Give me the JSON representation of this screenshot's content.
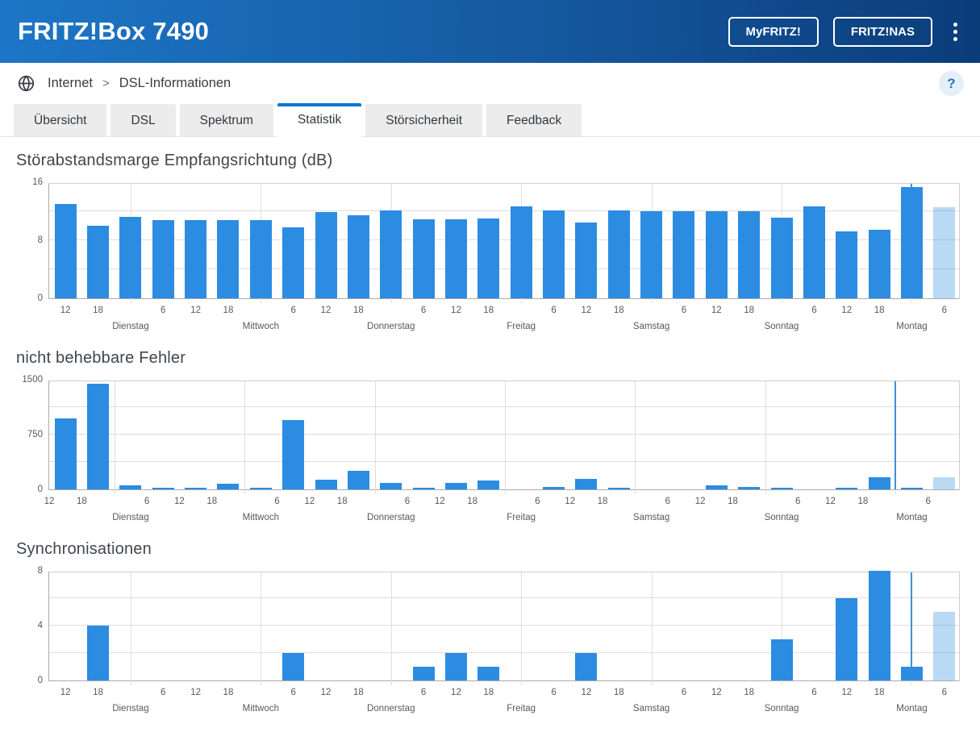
{
  "header": {
    "title": "FRITZ!Box 7490",
    "buttons": [
      {
        "label": "MyFRITZ!"
      },
      {
        "label": "FRITZ!NAS"
      }
    ]
  },
  "breadcrumb": {
    "icon": "globe-icon",
    "items": [
      "Internet",
      "DSL-Informationen"
    ],
    "separator": ">"
  },
  "help": {
    "label": "?"
  },
  "tabs": [
    {
      "label": "Übersicht",
      "active": false
    },
    {
      "label": "DSL",
      "active": false
    },
    {
      "label": "Spektrum",
      "active": false
    },
    {
      "label": "Statistik",
      "active": true
    },
    {
      "label": "Störsicherheit",
      "active": false
    },
    {
      "label": "Feedback",
      "active": false
    }
  ],
  "colors": {
    "bar": "#2b8ce2",
    "bar_light": "rgba(43,140,226,0.33)",
    "event_line": "#3f8fd6",
    "tab_accent": "#0077d2",
    "header_gradient": [
      "#1d76c7",
      "#0b3c7a"
    ],
    "help_bg": "#e4eff9"
  },
  "chart_data": [
    {
      "type": "bar",
      "id": "snr-margin",
      "title": "Störabstandsmarge Empfangsrichtung (dB)",
      "ylabel": "dB",
      "ylim": [
        0,
        16
      ],
      "yticks": [
        0,
        8,
        16
      ],
      "ygrid_step": 4,
      "grid": true,
      "align": "tick",
      "hour_labels": [
        "12",
        "18",
        "",
        "6",
        "12",
        "18",
        "",
        "6",
        "12",
        "18",
        "",
        "6",
        "12",
        "18",
        "",
        "6",
        "12",
        "18",
        "",
        "6",
        "12",
        "18",
        "",
        "6",
        "12",
        "18",
        "",
        "6"
      ],
      "day_slots": [
        2,
        6,
        10,
        14,
        18,
        22,
        26
      ],
      "day_labels": [
        "Dienstag",
        "Mittwoch",
        "Donnerstag",
        "Freitag",
        "Samstag",
        "Sonntag",
        "Montag"
      ],
      "values": [
        13.0,
        10.0,
        11.2,
        10.8,
        10.8,
        10.8,
        10.8,
        9.8,
        11.9,
        11.4,
        12.1,
        10.9,
        10.9,
        11.0,
        12.7,
        12.1,
        10.4,
        12.1,
        12.0,
        12.0,
        12.0,
        12.0,
        11.1,
        12.7,
        9.2,
        9.4,
        15.3,
        12.5
      ],
      "partial_last": true,
      "event_line_slot": 26
    },
    {
      "type": "bar",
      "id": "uncorrectable-errors",
      "title": "nicht behebbare Fehler",
      "ylabel": "",
      "ylim": [
        0,
        1500
      ],
      "yticks": [
        0,
        750,
        1500
      ],
      "ygrid_step": 375,
      "grid": true,
      "align": "edge",
      "hour_labels": [
        "12",
        "18",
        "",
        "6",
        "12",
        "18",
        "",
        "6",
        "12",
        "18",
        "",
        "6",
        "12",
        "18",
        "",
        "6",
        "12",
        "18",
        "",
        "6",
        "12",
        "18",
        "",
        "6",
        "12",
        "18",
        "",
        "6"
      ],
      "day_slots": [
        2,
        6,
        10,
        14,
        18,
        22,
        26
      ],
      "day_labels": [
        "Dienstag",
        "Mittwoch",
        "Donnerstag",
        "Freitag",
        "Samstag",
        "Sonntag",
        "Montag"
      ],
      "values": [
        970,
        1450,
        50,
        8,
        5,
        75,
        15,
        950,
        130,
        255,
        90,
        8,
        90,
        120,
        0,
        30,
        140,
        8,
        0,
        0,
        55,
        30,
        10,
        0,
        10,
        165,
        15,
        170
      ],
      "partial_last": true,
      "event_line_slot": 26
    },
    {
      "type": "bar",
      "id": "synchronisations",
      "title": "Synchronisationen",
      "ylabel": "",
      "ylim": [
        0,
        8
      ],
      "yticks": [
        0,
        4,
        8
      ],
      "ygrid_step": 2,
      "grid": true,
      "align": "tick",
      "hour_labels": [
        "12",
        "18",
        "",
        "6",
        "12",
        "18",
        "",
        "6",
        "12",
        "18",
        "",
        "6",
        "12",
        "18",
        "",
        "6",
        "12",
        "18",
        "",
        "6",
        "12",
        "18",
        "",
        "6",
        "12",
        "18",
        "",
        "6"
      ],
      "day_slots": [
        2,
        6,
        10,
        14,
        18,
        22,
        26
      ],
      "day_labels": [
        "Dienstag",
        "Mittwoch",
        "Donnerstag",
        "Freitag",
        "Samstag",
        "Sonntag",
        "Montag"
      ],
      "values": [
        0,
        4,
        0,
        0,
        0,
        0,
        0,
        2,
        0,
        0,
        0,
        1,
        2,
        1,
        0,
        0,
        2,
        0,
        0,
        0,
        0,
        0,
        3,
        0,
        6,
        8,
        1,
        5
      ],
      "partial_last": true,
      "event_line_slot": 26
    }
  ]
}
